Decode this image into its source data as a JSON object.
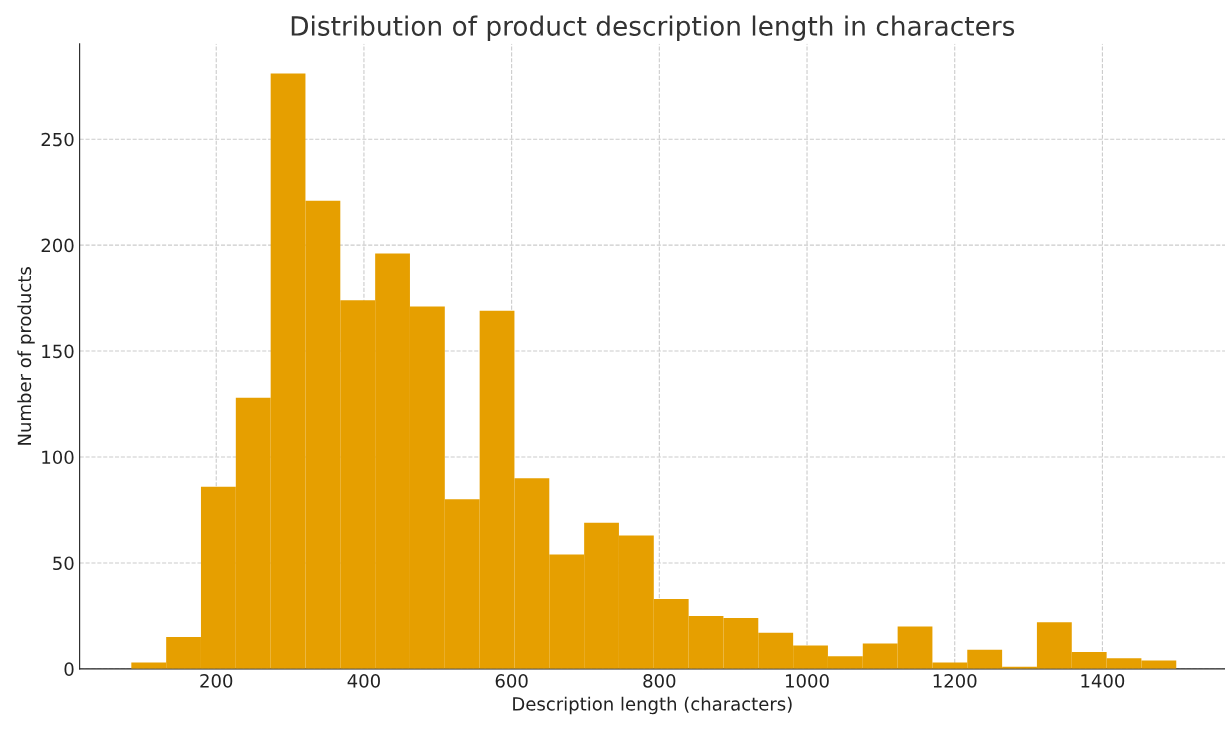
{
  "chart_data": {
    "type": "histogram",
    "title": "Distribution of product description length in characters",
    "xlabel": "Description length (characters)",
    "ylabel": "Number of products",
    "bins": [
      85,
      132.2,
      179.3,
      226.5,
      273.7,
      320.8,
      368,
      415.2,
      462.3,
      509.5,
      556.7,
      603.8,
      651,
      698.2,
      745.3,
      792.5,
      839.7,
      886.8,
      934,
      981.2,
      1028.3,
      1075.5,
      1122.7,
      1169.8,
      1217,
      1264.2,
      1311.3,
      1358.5,
      1405.7,
      1452.8,
      1500
    ],
    "values": [
      3,
      15,
      86,
      128,
      281,
      221,
      174,
      196,
      171,
      80,
      169,
      90,
      54,
      69,
      63,
      33,
      25,
      24,
      17,
      11,
      6,
      12,
      20,
      3,
      9,
      1,
      22,
      8,
      5,
      4
    ],
    "color": "#e69f00",
    "xlim": [
      15,
      1566
    ],
    "ylim": [
      0,
      295
    ],
    "xticks": [
      200,
      400,
      600,
      800,
      1000,
      1200,
      1400
    ],
    "yticks": [
      0,
      50,
      100,
      150,
      200,
      250
    ],
    "grid": true
  }
}
